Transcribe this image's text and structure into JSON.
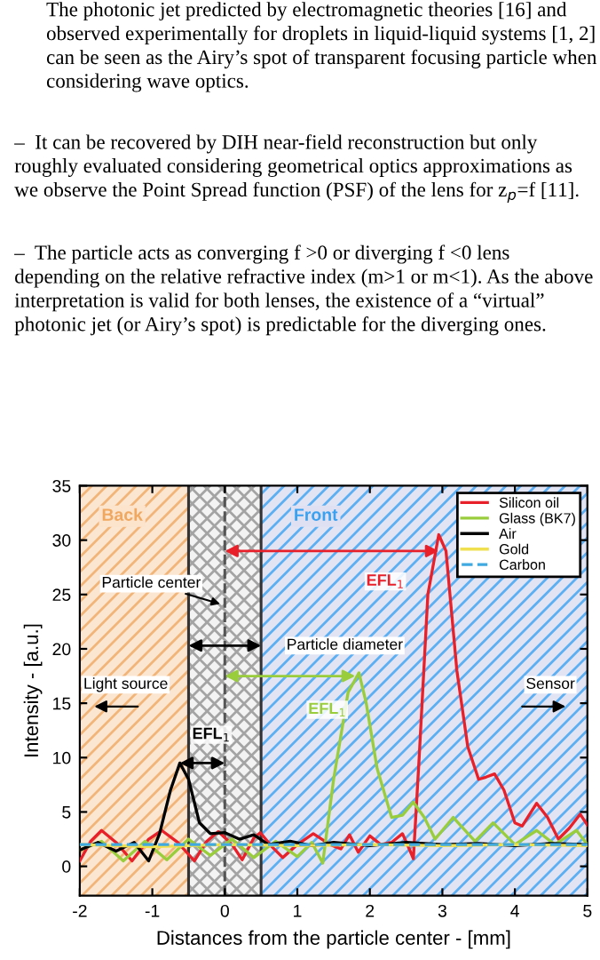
{
  "chart_data": {
    "type": "line",
    "xlabel": "Distances from the particle center - [mm]",
    "ylabel": "Intensity - [a.u.]",
    "xlim": [
      -2,
      5
    ],
    "ylim": [
      -2.7,
      35
    ],
    "xticks": [
      -2,
      -1,
      0,
      1,
      2,
      3,
      4,
      5
    ],
    "yticks": [
      0,
      5,
      10,
      15,
      20,
      25,
      30,
      35
    ],
    "grid": false,
    "legend": "top right",
    "line_style": "solid",
    "marker": "none",
    "series": [
      {
        "name": "Silicon oil",
        "color": "#e8202a",
        "x": [
          -2,
          -1.85,
          -1.7,
          -1.5,
          -1.28,
          -1.05,
          -0.87,
          -0.65,
          -0.42,
          -0.25,
          -0.09,
          0.1,
          0.24,
          0.4,
          0.49,
          0.65,
          0.8,
          1.0,
          1.22,
          1.45,
          1.6,
          1.72,
          1.84,
          2.0,
          2.15,
          2.3,
          2.45,
          2.55,
          2.6,
          2.68,
          2.8,
          2.95,
          3.05,
          3.2,
          3.35,
          3.5,
          3.6,
          3.72,
          3.85,
          4.0,
          4.1,
          4.3,
          4.45,
          4.6,
          4.75,
          4.9,
          5.0
        ],
        "values": [
          0.5,
          2.3,
          3.3,
          2.2,
          0.5,
          2.5,
          3.3,
          2.2,
          0.5,
          2.3,
          3.2,
          2.0,
          0.6,
          2.6,
          3.1,
          1.8,
          0.8,
          2.0,
          3.0,
          2.0,
          1.6,
          2.9,
          1.3,
          2.8,
          2.0,
          2.2,
          3.0,
          1.5,
          0.7,
          10,
          25,
          30.5,
          29,
          18,
          11,
          8,
          8.2,
          8.5,
          7,
          4,
          3.7,
          5.8,
          4.5,
          2.5,
          3.5,
          4.8,
          3.8
        ]
      },
      {
        "name": "Glass (BK7)",
        "color": "#9acd3c",
        "x": [
          -2,
          -1.7,
          -1.4,
          -1.1,
          -0.8,
          -0.5,
          -0.2,
          0.1,
          0.4,
          0.7,
          1.0,
          1.2,
          1.35,
          1.5,
          1.7,
          1.85,
          1.95,
          2.1,
          2.3,
          2.45,
          2.6,
          2.75,
          2.9,
          3.15,
          3.45,
          3.7,
          4.0,
          4.3,
          4.55,
          4.85,
          5.0
        ],
        "values": [
          1.5,
          2.3,
          0.5,
          2.3,
          0.6,
          2.5,
          1.0,
          2.5,
          0.8,
          2.3,
          0.9,
          2.2,
          0.3,
          8,
          16,
          17.8,
          15,
          9,
          4.5,
          4.7,
          5.9,
          4.5,
          2.5,
          4.5,
          2.3,
          4.0,
          2.0,
          3.3,
          2.0,
          3.3,
          2.0
        ]
      },
      {
        "name": "Air",
        "color": "#000000",
        "x": [
          -2,
          -1.75,
          -1.5,
          -1.25,
          -1.05,
          -0.9,
          -0.75,
          -0.62,
          -0.5,
          -0.35,
          -0.2,
          0,
          0.2,
          0.4,
          0.6,
          0.9,
          1.2,
          1.5,
          2.0,
          2.5,
          3.0,
          3.5,
          4.0,
          4.5,
          5.0
        ],
        "values": [
          1.5,
          2.2,
          1.4,
          2.2,
          0.5,
          3,
          7,
          9.5,
          8,
          4,
          3,
          3.1,
          2.5,
          2.9,
          2.0,
          2.3,
          1.9,
          2.2,
          1.9,
          2.2,
          2.0,
          2.1,
          1.9,
          2.1,
          2.0
        ]
      },
      {
        "name": "Gold",
        "color": "#f0e050",
        "x": [
          -2,
          -1,
          0,
          1,
          2,
          3,
          4,
          5
        ],
        "values": [
          2,
          1.8,
          2,
          1.9,
          2,
          1.9,
          2,
          1.9
        ]
      },
      {
        "name": "Carbon",
        "color": "#3fa9e0",
        "line_style": "dashed",
        "x": [
          -2,
          5
        ],
        "values": [
          2,
          2
        ]
      }
    ],
    "bands": [
      {
        "axis": "x",
        "from": -2,
        "to": -0.5,
        "label": "Back",
        "color": "#f0a860"
      },
      {
        "axis": "x",
        "from": -0.5,
        "to": 0.5,
        "color": "#909090"
      },
      {
        "axis": "x",
        "from": 0.5,
        "to": 5,
        "label": "Front",
        "color": "#3aa0f0"
      }
    ],
    "ref_lines": [
      {
        "axis": "x",
        "value": -0.5,
        "color": "#333333",
        "line_style": "solid"
      },
      {
        "axis": "x",
        "value": 0,
        "color": "#555555",
        "line_style": "dashed"
      },
      {
        "axis": "x",
        "value": 0.5,
        "color": "#333333",
        "line_style": "solid"
      }
    ],
    "annotations": [
      "The photonic jet predicted by electromagnetic theories [16] and observed experimentally for droplets in liquid-liquid systems [1, 2] can be seen as the Airy’s spot of transparent focusing particle when considering wave optics.",
      "–  It can be recovered by DIH near-field reconstruction but only roughly evaluated considering geometrical optics approximations as we observe the Point Spread function (PSF) of the lens for z$_{p}$=f [11].",
      "–  The particle acts as converging f >0 or diverging f <0 lens depending on the relative refractive index (m>1 or m<1). As the above interpretation is valid for both lenses, the existence of a “virtual” photonic jet (or Airy’s spot) is predictable for the diverging ones.",
      {
        "text": "Particle center",
        "x": 0,
        "y": 24
      },
      {
        "text": "Particle diameter",
        "x": 0.5,
        "y": 20.3
      },
      {
        "text": "EFL$_{1}$",
        "x": 2.95,
        "y": 29
      },
      {
        "text": "EFL$_{1}$",
        "x": 1.8,
        "y": 17.5
      },
      {
        "text": "EFL$_{1}$",
        "x": -0.62,
        "y": 9.5
      },
      "Light source",
      "Sensor"
    ]
  }
}
